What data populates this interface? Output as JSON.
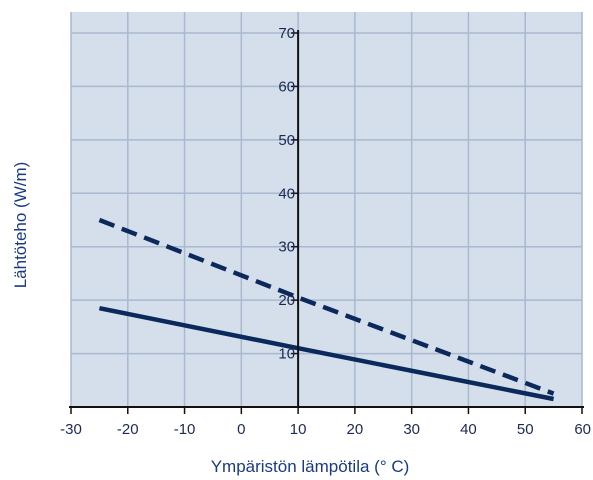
{
  "chart_data": {
    "type": "line",
    "title": "",
    "xlabel": "Ympäristön lämpötila (° C)",
    "ylabel": "Lähtöteho (W/m)",
    "xlim": [
      -30,
      60
    ],
    "ylim": [
      0,
      70
    ],
    "x_ticks": [
      -30,
      -20,
      -10,
      0,
      10,
      20,
      30,
      40,
      50,
      60
    ],
    "y_ticks": [
      10,
      20,
      30,
      40,
      50,
      60,
      70
    ],
    "grid": true,
    "legend": "none",
    "series": [
      {
        "style": "dashed",
        "color": "#0b2a5b",
        "points": [
          [
            -25,
            35
          ],
          [
            10,
            20.5
          ],
          [
            55,
            2.5
          ]
        ]
      },
      {
        "style": "solid",
        "color": "#0b2a5b",
        "points": [
          [
            -25,
            18.5
          ],
          [
            10,
            11
          ],
          [
            55,
            1.5
          ]
        ]
      }
    ],
    "colors": {
      "plot_background": "#d4dfeb",
      "grid": "#a9b9cf",
      "axis": "#111111"
    }
  }
}
